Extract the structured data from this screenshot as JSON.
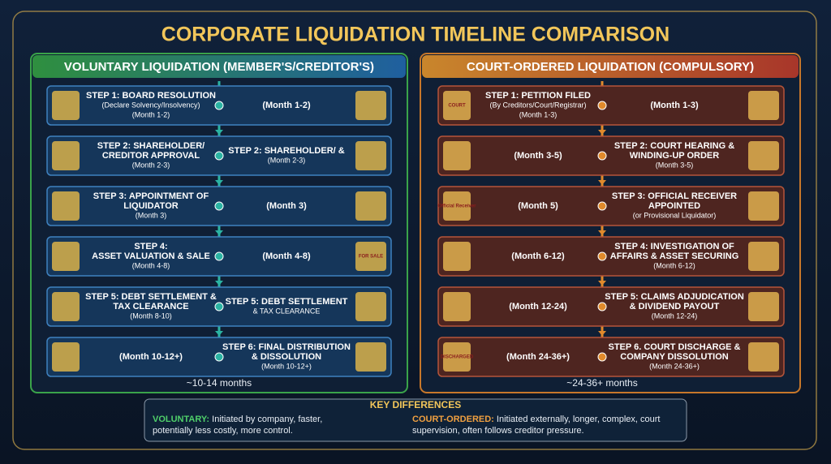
{
  "title": "CORPORATE LIQUIDATION TIMELINE COMPARISON",
  "panels": [
    {
      "header": "VOLUNTARY LIQUIDATION (MEMBER'S/CREDITOR'S)",
      "rows": [
        {
          "left": [
            "STEP 1: BOARD RESOLUTION",
            "(Declare Solvency/Insolvency)",
            "(Month 1-2)"
          ],
          "right": [
            "(Month 1-2)"
          ]
        },
        {
          "left": [
            "STEP 2: SHAREHOLDER/",
            "CREDITOR APPROVAL",
            "(Month 2-3)"
          ],
          "right": [
            "STEP 2: SHAREHOLDER/ &",
            "(Month 2-3)"
          ]
        },
        {
          "left": [
            "STEP 3: APPOINTMENT OF",
            "LIQUIDATOR",
            "(Month 3)"
          ],
          "right": [
            "(Month 3)"
          ]
        },
        {
          "left": [
            "STEP 4:",
            "ASSET VALUATION & SALE",
            "(Month 4-8)"
          ],
          "right": [
            "(Month 4-8)"
          ],
          "icon_text": "FOR SALE"
        },
        {
          "left": [
            "STEP 5: DEBT SETTLEMENT &",
            "TAX CLEARANCE",
            "(Month 8-10)"
          ],
          "right": [
            "STEP 5: DEBT SETTLEMENT",
            "& TAX CLEARANCE"
          ]
        },
        {
          "left": [
            "(Month 10-12+)"
          ],
          "right": [
            "STEP 6: FINAL DISTRIBUTION",
            "& DISSOLUTION",
            "(Month 10-12+)"
          ]
        }
      ],
      "total": "~10-14 months"
    },
    {
      "header": "COURT-ORDERED LIQUIDATION (COMPULSORY)",
      "rows": [
        {
          "left": [
            "STEP 1: PETITION FILED",
            "(By Creditors/Court/Registrar)",
            "(Month 1-3)"
          ],
          "right": [
            "(Month 1-3)"
          ],
          "icon_text": "COURT"
        },
        {
          "left": [
            "(Month 3-5)"
          ],
          "right": [
            "STEP 2: COURT HEARING &",
            "WINDING-UP ORDER",
            "(Month 3-5)"
          ]
        },
        {
          "left": [
            "(Month 5)"
          ],
          "right": [
            "STEP 3: OFFICIAL RECEIVER",
            "APPOINTED",
            "(or Provisional Liquidator)"
          ],
          "icon_text": "Official Receiver"
        },
        {
          "left": [
            "(Month 6-12)"
          ],
          "right": [
            "STEP 4: INVESTIGATION OF",
            "AFFAIRS & ASSET SECURING",
            "(Month 6-12)"
          ]
        },
        {
          "left": [
            "(Month 12-24)"
          ],
          "right": [
            "STEP 5: CLAIMS ADJUDICATION",
            "& DIVIDEND PAYOUT",
            "(Month 12-24)"
          ]
        },
        {
          "left": [
            "(Month 24-36+)"
          ],
          "right": [
            "STEP 6. COURT DISCHARGE &",
            "COMPANY DISSOLUTION",
            "(Month 24-36+)"
          ],
          "icon_text": "DISCHARGED"
        }
      ],
      "total": "~24-36+ months"
    }
  ],
  "key": {
    "title": "KEY DIFFERENCES",
    "items": [
      {
        "label": "VOLUNTARY:",
        "text": "Initiated by company, faster, potentially less costly, more control."
      },
      {
        "label": "COURT-ORDERED:",
        "text": "Initiated externally, longer, complex, court supervision, often follows creditor pressure."
      }
    ]
  }
}
